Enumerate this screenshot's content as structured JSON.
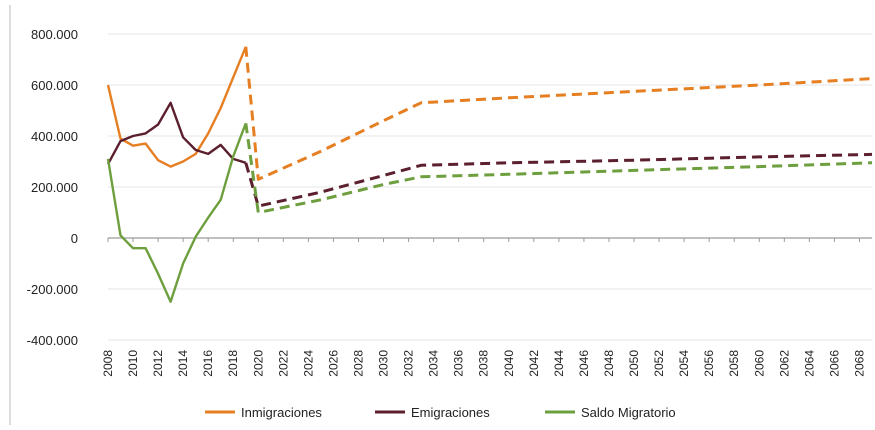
{
  "chart_data": {
    "type": "line",
    "title": "",
    "xlabel": "",
    "ylabel": "",
    "ylim": [
      -400000,
      800000
    ],
    "y_ticks": [
      800000,
      600000,
      400000,
      200000,
      0,
      -200000,
      -400000
    ],
    "y_tick_labels": [
      "800.000",
      "600.000",
      "400.000",
      "200.000",
      "0",
      "-200.000",
      "-400.000"
    ],
    "xlim": [
      2008,
      2069
    ],
    "x_tick_labels": [
      "2008",
      "2010",
      "2012",
      "2014",
      "2016",
      "2018",
      "2020",
      "2022",
      "2024",
      "2026",
      "2028",
      "2030",
      "2032",
      "2034",
      "2036",
      "2038",
      "2040",
      "2042",
      "2044",
      "2046",
      "2048",
      "2050",
      "2052",
      "2054",
      "2056",
      "2058",
      "2060",
      "2062",
      "2064",
      "2066",
      "2068"
    ],
    "grid": "horizontal",
    "legend_position": "bottom",
    "series": [
      {
        "name": "Inmigraciones",
        "color": "#E67E22",
        "observed": [
          [
            2008,
            600000
          ],
          [
            2009,
            390000
          ],
          [
            2010,
            362000
          ],
          [
            2011,
            370000
          ],
          [
            2012,
            305000
          ],
          [
            2013,
            280000
          ],
          [
            2014,
            300000
          ],
          [
            2015,
            330000
          ],
          [
            2016,
            410000
          ],
          [
            2017,
            510000
          ],
          [
            2018,
            630000
          ],
          [
            2019,
            750000
          ]
        ],
        "projected": [
          [
            2019,
            750000
          ],
          [
            2020,
            230000
          ],
          [
            2025,
            340000
          ],
          [
            2030,
            460000
          ],
          [
            2033,
            530000
          ],
          [
            2040,
            550000
          ],
          [
            2050,
            575000
          ],
          [
            2060,
            600000
          ],
          [
            2069,
            625000
          ]
        ]
      },
      {
        "name": "Emigraciones",
        "color": "#5B1F2E",
        "observed": [
          [
            2008,
            290000
          ],
          [
            2009,
            380000
          ],
          [
            2010,
            400000
          ],
          [
            2011,
            410000
          ],
          [
            2012,
            445000
          ],
          [
            2013,
            530000
          ],
          [
            2014,
            395000
          ],
          [
            2015,
            345000
          ],
          [
            2016,
            330000
          ],
          [
            2017,
            365000
          ],
          [
            2018,
            310000
          ],
          [
            2019,
            295000
          ]
        ],
        "projected": [
          [
            2019,
            295000
          ],
          [
            2020,
            125000
          ],
          [
            2025,
            180000
          ],
          [
            2030,
            245000
          ],
          [
            2033,
            285000
          ],
          [
            2040,
            295000
          ],
          [
            2050,
            305000
          ],
          [
            2060,
            318000
          ],
          [
            2069,
            328000
          ]
        ]
      },
      {
        "name": "Saldo Migratorio",
        "color": "#6E9F3E",
        "observed": [
          [
            2008,
            310000
          ],
          [
            2009,
            10000
          ],
          [
            2010,
            -40000
          ],
          [
            2011,
            -40000
          ],
          [
            2012,
            -140000
          ],
          [
            2013,
            -250000
          ],
          [
            2014,
            -100000
          ],
          [
            2015,
            5000
          ],
          [
            2016,
            80000
          ],
          [
            2017,
            150000
          ],
          [
            2018,
            320000
          ],
          [
            2019,
            450000
          ]
        ],
        "projected": [
          [
            2019,
            450000
          ],
          [
            2020,
            100000
          ],
          [
            2025,
            150000
          ],
          [
            2030,
            210000
          ],
          [
            2033,
            240000
          ],
          [
            2040,
            250000
          ],
          [
            2050,
            265000
          ],
          [
            2060,
            280000
          ],
          [
            2069,
            295000
          ]
        ]
      }
    ]
  }
}
